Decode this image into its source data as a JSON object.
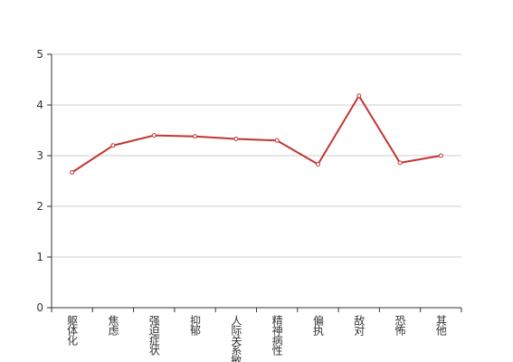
{
  "chart_data": {
    "type": "line",
    "categories": [
      "躯体化",
      "焦虑",
      "强迫症状",
      "抑郁",
      "人际关系敏感",
      "精神病性",
      "偏执",
      "敌对",
      "恐怖",
      "其他"
    ],
    "values": [
      2.67,
      3.2,
      3.4,
      3.38,
      3.33,
      3.3,
      2.83,
      4.18,
      2.86,
      3.0
    ],
    "color": "#c23531",
    "ylim": [
      0,
      5
    ],
    "yticks": [
      0,
      1,
      2,
      3,
      4,
      5
    ],
    "grid": true
  }
}
